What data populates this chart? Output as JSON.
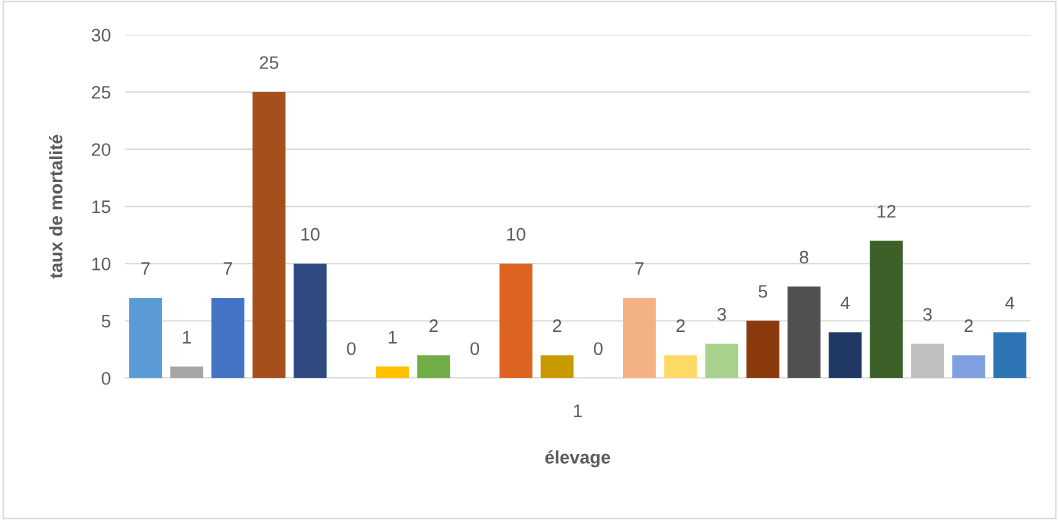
{
  "chart_data": {
    "type": "bar",
    "xlabel": "élevage",
    "ylabel": "taux de mortalité",
    "categories": [
      null,
      null,
      null,
      null,
      null,
      null,
      null,
      null,
      null,
      null,
      null,
      null,
      null,
      null,
      null,
      null,
      null,
      null,
      null,
      null,
      null,
      null
    ],
    "values": [
      7,
      1,
      7,
      25,
      10,
      0,
      1,
      2,
      0,
      10,
      2,
      0,
      7,
      2,
      3,
      5,
      8,
      4,
      12,
      3,
      2,
      4
    ],
    "colors": [
      "#5b9bd5",
      "#a5a5a5",
      "#4472c4",
      "#a5501c",
      "#2f4a80",
      "#636363",
      "#ffc000",
      "#70ad47",
      "#255e91",
      "#dc6420",
      "#c99a00",
      "#43682b",
      "#f4b183",
      "#ffd966",
      "#a9d18e",
      "#8b3a0e",
      "#505050",
      "#1f3864",
      "#3d5f28",
      "#bfbfbf",
      "#7f9fdf",
      "#2e75b6"
    ],
    "annotations": [
      "1"
    ],
    "ylim": [
      0,
      30
    ],
    "yticks": [
      0,
      5,
      10,
      15,
      20,
      25,
      30
    ],
    "grid": "y",
    "data_labels": true
  }
}
